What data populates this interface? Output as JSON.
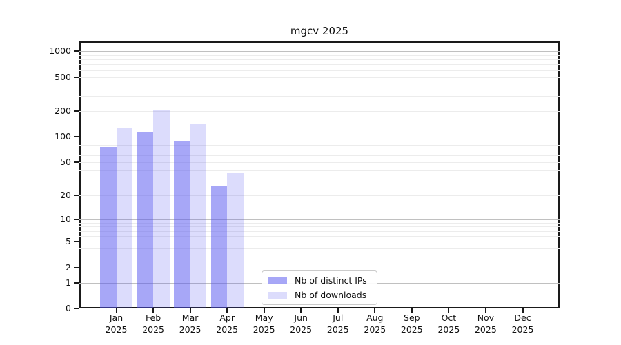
{
  "chart_data": {
    "type": "bar",
    "title": "mgcv 2025",
    "x": {
      "categories": [
        "Jan",
        "Feb",
        "Mar",
        "Apr",
        "May",
        "Jun",
        "Jul",
        "Aug",
        "Sep",
        "Oct",
        "Nov",
        "Dec"
      ],
      "year": "2025"
    },
    "y": {
      "scale": "log1p",
      "ticks": [
        0,
        1,
        2,
        5,
        10,
        20,
        50,
        100,
        200,
        500,
        1000
      ],
      "grid_major": [
        1,
        10,
        100,
        1000
      ],
      "lim": [
        0,
        1300
      ]
    },
    "series": [
      {
        "key": "distinct-ips",
        "name": "Nb of distinct IPs",
        "color": "rgba(80,80,240,0.5)",
        "values": [
          75,
          115,
          90,
          26,
          null,
          null,
          null,
          null,
          null,
          null,
          null,
          null
        ]
      },
      {
        "key": "downloads",
        "name": "Nb of downloads",
        "color": "rgba(80,80,240,0.2)",
        "values": [
          125,
          205,
          140,
          37,
          null,
          null,
          null,
          null,
          null,
          null,
          null,
          null
        ]
      }
    ],
    "legend_position": "bottom-center",
    "grid": "horizontal"
  }
}
